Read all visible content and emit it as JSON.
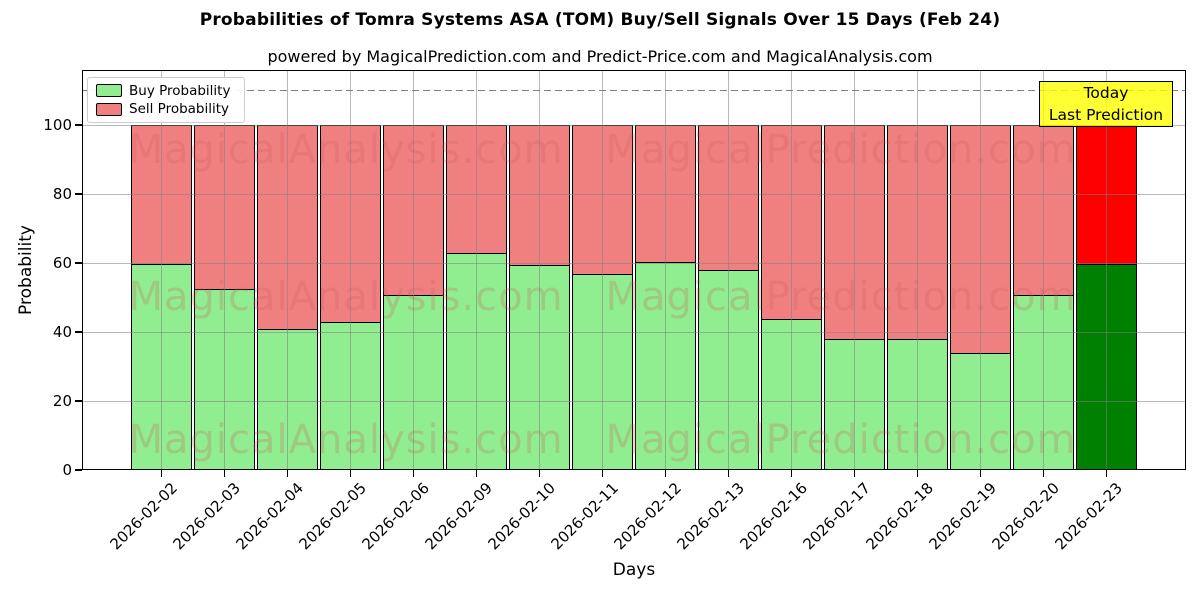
{
  "header": {
    "title": "Probabilities of Tomra Systems ASA (TOM) Buy/Sell Signals Over 15 Days (Feb 24)",
    "subtitle": "powered by MagicalPrediction.com and Predict-Price.com and MagicalAnalysis.com"
  },
  "chart_data": {
    "type": "bar",
    "stacked": true,
    "title": "Probabilities of Tomra Systems ASA (TOM) Buy/Sell Signals Over 15 Days (Feb 24)",
    "subtitle": "powered by MagicalPrediction.com and Predict-Price.com and MagicalAnalysis.com",
    "xlabel": "Days",
    "ylabel": "Probability",
    "ylim": [
      0,
      116
    ],
    "yticks": [
      0,
      20,
      40,
      60,
      80,
      100
    ],
    "grid": true,
    "dashed_reference_line_y": 110,
    "categories": [
      "2026-02-02",
      "2026-02-03",
      "2026-02-04",
      "2026-02-05",
      "2026-02-06",
      "2026-02-09",
      "2026-02-10",
      "2026-02-11",
      "2026-02-12",
      "2026-02-13",
      "2026-02-16",
      "2026-02-17",
      "2026-02-18",
      "2026-02-19",
      "2026-02-20",
      "2026-02-23"
    ],
    "series": [
      {
        "name": "Buy Probability",
        "color": "#90EE90",
        "values": [
          60,
          52.5,
          41,
          43,
          51,
          63,
          59.5,
          57,
          60.5,
          58,
          44,
          38,
          38,
          34,
          51,
          60
        ]
      },
      {
        "name": "Sell Probability",
        "color": "#F08080",
        "values": [
          40,
          47.5,
          59,
          57,
          49,
          37,
          40.5,
          43,
          39.5,
          42,
          56,
          62,
          62,
          66,
          49,
          40
        ]
      }
    ],
    "last_bar_highlight": {
      "buy_color": "#008000",
      "sell_color": "#FF0000"
    },
    "legend": {
      "position": "top-left",
      "entries": [
        "Buy Probability",
        "Sell Probability"
      ]
    },
    "annotation_box": {
      "lines": [
        "Today",
        "Last Prediction"
      ],
      "bg_color": "#FFFF00",
      "border_color": "#000000"
    },
    "watermark": {
      "left_text": "MagicalAnalysis.com",
      "right_text": "MagicalPrediction.com"
    }
  }
}
